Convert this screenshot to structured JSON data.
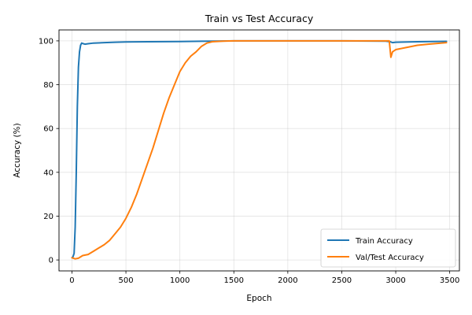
{
  "chart_data": {
    "type": "line",
    "title": "Train vs Test Accuracy",
    "xlabel": "Epoch",
    "ylabel": "Accuracy (%)",
    "xlim": [
      -120,
      3590
    ],
    "ylim": [
      -5,
      105
    ],
    "x_ticks": [
      0,
      500,
      1000,
      1500,
      2000,
      2500,
      3000,
      3500
    ],
    "y_ticks": [
      0,
      20,
      40,
      60,
      80,
      100
    ],
    "grid": true,
    "legend": "bottom-right",
    "series": [
      {
        "name": "Train Accuracy",
        "color": "#1f77b4",
        "points": [
          [
            0,
            1
          ],
          [
            10,
            1.5
          ],
          [
            20,
            3
          ],
          [
            30,
            15
          ],
          [
            40,
            40
          ],
          [
            50,
            70
          ],
          [
            60,
            88
          ],
          [
            70,
            95
          ],
          [
            80,
            98
          ],
          [
            90,
            99
          ],
          [
            100,
            98.8
          ],
          [
            120,
            98.5
          ],
          [
            150,
            98.7
          ],
          [
            200,
            99
          ],
          [
            300,
            99.2
          ],
          [
            400,
            99.4
          ],
          [
            500,
            99.5
          ],
          [
            700,
            99.6
          ],
          [
            1000,
            99.7
          ],
          [
            1300,
            99.9
          ],
          [
            1500,
            100
          ],
          [
            2000,
            100
          ],
          [
            2500,
            100
          ],
          [
            2900,
            99.9
          ],
          [
            2950,
            99.6
          ],
          [
            2970,
            99.2
          ],
          [
            3000,
            99.4
          ],
          [
            3200,
            99.6
          ],
          [
            3470,
            99.8
          ]
        ]
      },
      {
        "name": "Val/Test Accuracy",
        "color": "#ff7f0e",
        "points": [
          [
            0,
            1
          ],
          [
            30,
            0.5
          ],
          [
            60,
            0.8
          ],
          [
            100,
            2
          ],
          [
            150,
            2.5
          ],
          [
            200,
            4
          ],
          [
            250,
            5.5
          ],
          [
            300,
            7
          ],
          [
            350,
            9
          ],
          [
            400,
            12
          ],
          [
            450,
            15
          ],
          [
            500,
            19
          ],
          [
            550,
            24
          ],
          [
            600,
            30
          ],
          [
            650,
            37
          ],
          [
            700,
            44
          ],
          [
            750,
            51
          ],
          [
            800,
            59
          ],
          [
            850,
            67
          ],
          [
            900,
            74
          ],
          [
            950,
            80
          ],
          [
            1000,
            86
          ],
          [
            1050,
            90
          ],
          [
            1100,
            93
          ],
          [
            1150,
            95
          ],
          [
            1200,
            97.5
          ],
          [
            1250,
            99
          ],
          [
            1300,
            99.6
          ],
          [
            1400,
            99.9
          ],
          [
            1500,
            100
          ],
          [
            2000,
            100
          ],
          [
            2500,
            100
          ],
          [
            2940,
            100
          ],
          [
            2955,
            92.5
          ],
          [
            2970,
            95
          ],
          [
            3000,
            96
          ],
          [
            3100,
            97
          ],
          [
            3200,
            98
          ],
          [
            3300,
            98.5
          ],
          [
            3470,
            99.2
          ]
        ]
      }
    ]
  }
}
